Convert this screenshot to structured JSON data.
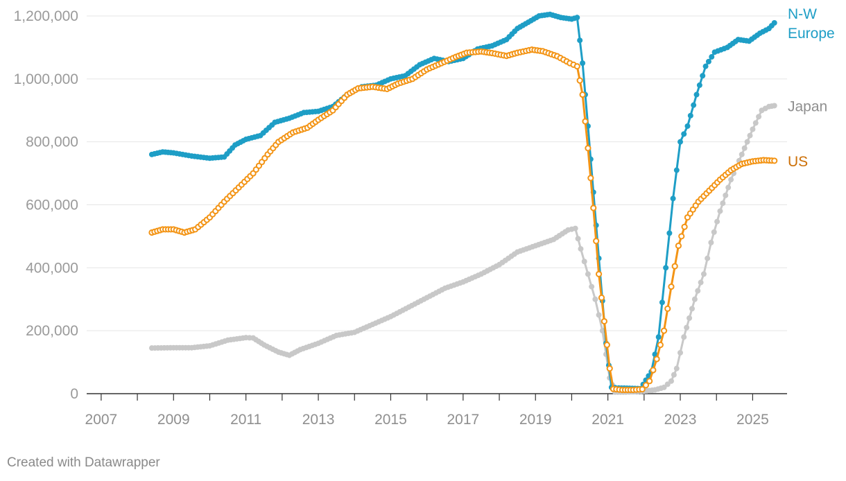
{
  "footer": {
    "credit": "Created with Datawrapper"
  },
  "chart_data": {
    "type": "line",
    "title": "",
    "xlabel": "",
    "ylabel": "",
    "xlim": [
      2006.6,
      2025.95
    ],
    "ylim": [
      0,
      1200000
    ],
    "y_ticks": [
      0,
      200000,
      400000,
      600000,
      800000,
      1000000,
      1200000
    ],
    "y_tick_labels": [
      "0",
      "200,000",
      "400,000",
      "600,000",
      "800,000",
      "1,000,000",
      "1,200,000"
    ],
    "x_ticks": [
      2007,
      2009,
      2011,
      2013,
      2015,
      2017,
      2019,
      2021,
      2023,
      2025
    ],
    "x_tick_labels": [
      "2007",
      "2009",
      "2011",
      "2013",
      "2015",
      "2017",
      "2019",
      "2021",
      "2023",
      "2025"
    ],
    "grid": true,
    "legend": "direct labels at right end of lines",
    "series": [
      {
        "name": "Japan",
        "label_lines": [
          "Japan"
        ],
        "color": "#c8c8c8",
        "label_color": "#8f8f8f",
        "marker": "filled",
        "points": [
          [
            2008.4,
            145000
          ],
          [
            2009.0,
            146000
          ],
          [
            2009.5,
            146000
          ],
          [
            2010.0,
            152000
          ],
          [
            2010.5,
            170000
          ],
          [
            2011.0,
            178000
          ],
          [
            2011.2,
            177000
          ],
          [
            2011.5,
            155000
          ],
          [
            2011.9,
            132000
          ],
          [
            2012.2,
            122000
          ],
          [
            2012.5,
            140000
          ],
          [
            2013.0,
            160000
          ],
          [
            2013.5,
            185000
          ],
          [
            2014.0,
            195000
          ],
          [
            2014.5,
            220000
          ],
          [
            2015.0,
            245000
          ],
          [
            2015.5,
            275000
          ],
          [
            2016.0,
            305000
          ],
          [
            2016.5,
            335000
          ],
          [
            2017.0,
            355000
          ],
          [
            2017.5,
            380000
          ],
          [
            2018.0,
            410000
          ],
          [
            2018.5,
            450000
          ],
          [
            2019.0,
            470000
          ],
          [
            2019.5,
            490000
          ],
          [
            2019.9,
            520000
          ],
          [
            2020.1,
            525000
          ],
          [
            2020.25,
            460000
          ],
          [
            2020.45,
            380000
          ],
          [
            2020.65,
            300000
          ],
          [
            2020.85,
            200000
          ],
          [
            2021.05,
            50000
          ],
          [
            2021.2,
            5000
          ],
          [
            2021.5,
            5000
          ],
          [
            2022.0,
            8000
          ],
          [
            2022.3,
            12000
          ],
          [
            2022.55,
            20000
          ],
          [
            2022.75,
            40000
          ],
          [
            2022.9,
            80000
          ],
          [
            2023.1,
            180000
          ],
          [
            2023.4,
            300000
          ],
          [
            2023.65,
            380000
          ],
          [
            2023.85,
            480000
          ],
          [
            2024.1,
            580000
          ],
          [
            2024.4,
            680000
          ],
          [
            2024.7,
            760000
          ],
          [
            2025.0,
            840000
          ],
          [
            2025.25,
            900000
          ],
          [
            2025.45,
            912000
          ],
          [
            2025.6,
            915000
          ]
        ]
      },
      {
        "name": "N-W Europe",
        "label_lines": [
          "N-W",
          "Europe"
        ],
        "color": "#1e9ec6",
        "label_color": "#1e9ec6",
        "marker": "filled",
        "points": [
          [
            2008.4,
            760000
          ],
          [
            2008.7,
            768000
          ],
          [
            2009.0,
            765000
          ],
          [
            2009.5,
            755000
          ],
          [
            2010.0,
            748000
          ],
          [
            2010.4,
            752000
          ],
          [
            2010.7,
            790000
          ],
          [
            2011.0,
            808000
          ],
          [
            2011.4,
            820000
          ],
          [
            2011.8,
            862000
          ],
          [
            2012.2,
            875000
          ],
          [
            2012.6,
            893000
          ],
          [
            2013.0,
            897000
          ],
          [
            2013.4,
            912000
          ],
          [
            2013.8,
            950000
          ],
          [
            2014.2,
            975000
          ],
          [
            2014.6,
            980000
          ],
          [
            2015.0,
            1000000
          ],
          [
            2015.4,
            1010000
          ],
          [
            2015.8,
            1045000
          ],
          [
            2016.2,
            1065000
          ],
          [
            2016.6,
            1055000
          ],
          [
            2017.0,
            1065000
          ],
          [
            2017.4,
            1095000
          ],
          [
            2017.8,
            1105000
          ],
          [
            2018.2,
            1125000
          ],
          [
            2018.5,
            1160000
          ],
          [
            2018.8,
            1180000
          ],
          [
            2019.1,
            1200000
          ],
          [
            2019.4,
            1205000
          ],
          [
            2019.7,
            1195000
          ],
          [
            2020.0,
            1190000
          ],
          [
            2020.15,
            1195000
          ],
          [
            2020.3,
            1050000
          ],
          [
            2020.45,
            850000
          ],
          [
            2020.6,
            640000
          ],
          [
            2020.75,
            430000
          ],
          [
            2020.95,
            160000
          ],
          [
            2021.1,
            20000
          ],
          [
            2021.3,
            18000
          ],
          [
            2021.6,
            17000
          ],
          [
            2021.9,
            16000
          ],
          [
            2022.2,
            70000
          ],
          [
            2022.4,
            180000
          ],
          [
            2022.6,
            400000
          ],
          [
            2022.8,
            620000
          ],
          [
            2023.0,
            800000
          ],
          [
            2023.2,
            850000
          ],
          [
            2023.45,
            950000
          ],
          [
            2023.7,
            1040000
          ],
          [
            2023.95,
            1085000
          ],
          [
            2024.3,
            1100000
          ],
          [
            2024.6,
            1125000
          ],
          [
            2024.9,
            1120000
          ],
          [
            2025.2,
            1145000
          ],
          [
            2025.45,
            1160000
          ],
          [
            2025.6,
            1178000
          ]
        ]
      },
      {
        "name": "US",
        "label_lines": [
          "US"
        ],
        "color": "#f39415",
        "label_color": "#cc6f06",
        "marker": "hollow",
        "points": [
          [
            2008.4,
            512000
          ],
          [
            2008.7,
            522000
          ],
          [
            2009.0,
            522000
          ],
          [
            2009.3,
            512000
          ],
          [
            2009.6,
            522000
          ],
          [
            2010.0,
            560000
          ],
          [
            2010.4,
            610000
          ],
          [
            2010.8,
            655000
          ],
          [
            2011.2,
            700000
          ],
          [
            2011.6,
            760000
          ],
          [
            2011.9,
            800000
          ],
          [
            2012.3,
            830000
          ],
          [
            2012.7,
            845000
          ],
          [
            2013.0,
            870000
          ],
          [
            2013.4,
            900000
          ],
          [
            2013.8,
            950000
          ],
          [
            2014.1,
            970000
          ],
          [
            2014.5,
            975000
          ],
          [
            2014.9,
            968000
          ],
          [
            2015.2,
            985000
          ],
          [
            2015.6,
            1000000
          ],
          [
            2016.0,
            1030000
          ],
          [
            2016.4,
            1050000
          ],
          [
            2016.8,
            1070000
          ],
          [
            2017.1,
            1083000
          ],
          [
            2017.5,
            1087000
          ],
          [
            2017.8,
            1082000
          ],
          [
            2018.2,
            1073000
          ],
          [
            2018.5,
            1083000
          ],
          [
            2018.9,
            1093000
          ],
          [
            2019.2,
            1088000
          ],
          [
            2019.6,
            1072000
          ],
          [
            2019.95,
            1050000
          ],
          [
            2020.15,
            1040000
          ],
          [
            2020.3,
            950000
          ],
          [
            2020.45,
            780000
          ],
          [
            2020.6,
            590000
          ],
          [
            2020.75,
            380000
          ],
          [
            2020.9,
            230000
          ],
          [
            2021.05,
            80000
          ],
          [
            2021.15,
            15000
          ],
          [
            2021.4,
            12000
          ],
          [
            2021.7,
            12000
          ],
          [
            2021.95,
            14000
          ],
          [
            2022.15,
            40000
          ],
          [
            2022.35,
            110000
          ],
          [
            2022.55,
            200000
          ],
          [
            2022.75,
            340000
          ],
          [
            2022.95,
            470000
          ],
          [
            2023.2,
            560000
          ],
          [
            2023.5,
            610000
          ],
          [
            2023.8,
            645000
          ],
          [
            2024.1,
            680000
          ],
          [
            2024.4,
            710000
          ],
          [
            2024.7,
            730000
          ],
          [
            2025.0,
            738000
          ],
          [
            2025.3,
            742000
          ],
          [
            2025.6,
            740000
          ]
        ]
      }
    ]
  }
}
